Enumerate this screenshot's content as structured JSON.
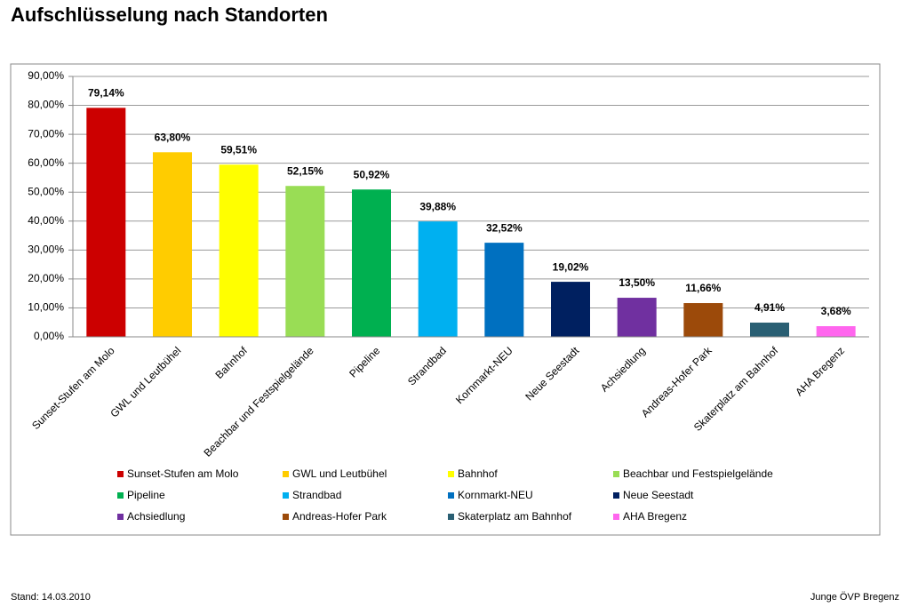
{
  "chart_data": {
    "type": "bar",
    "title": "Aufschlüsselung nach  Standorten",
    "categories": [
      "Sunset-Stufen am Molo",
      "GWL und Leutbühel",
      "Bahnhof",
      "Beachbar und Festspielgelände",
      "Pipeline",
      "Strandbad",
      "Kornmarkt-NEU",
      "Neue Seestadt",
      "Achsiedlung",
      "Andreas-Hofer Park",
      "Skaterplatz am Bahnhof",
      "AHA Bregenz"
    ],
    "values": [
      79.14,
      63.8,
      59.51,
      52.15,
      50.92,
      39.88,
      32.52,
      19.02,
      13.5,
      11.66,
      4.91,
      3.68
    ],
    "value_labels": [
      "79,14%",
      "63,80%",
      "59,51%",
      "52,15%",
      "50,92%",
      "39,88%",
      "32,52%",
      "19,02%",
      "13,50%",
      "11,66%",
      "4,91%",
      "3,68%"
    ],
    "colors": [
      "#cc0000",
      "#ffcc00",
      "#ffff00",
      "#99dd55",
      "#00b050",
      "#00b0f0",
      "#0070c0",
      "#002060",
      "#7030a0",
      "#9c4a0a",
      "#2a5f73",
      "#ff66ee"
    ],
    "ylim": [
      0,
      90
    ],
    "yticks": [
      {
        "value": 0,
        "label": "0,00%"
      },
      {
        "value": 10,
        "label": "10,00%"
      },
      {
        "value": 20,
        "label": "20,00%"
      },
      {
        "value": 30,
        "label": "30,00%"
      },
      {
        "value": 40,
        "label": "40,00%"
      },
      {
        "value": 50,
        "label": "50,00%"
      },
      {
        "value": 60,
        "label": "60,00%"
      },
      {
        "value": 70,
        "label": "70,00%"
      },
      {
        "value": 80,
        "label": "80,00%"
      },
      {
        "value": 90,
        "label": "90,00%"
      }
    ],
    "grid": true,
    "legend": "bottom"
  },
  "footer": {
    "left": "Stand: 14.03.2010",
    "right": "Junge ÖVP Bregenz"
  }
}
